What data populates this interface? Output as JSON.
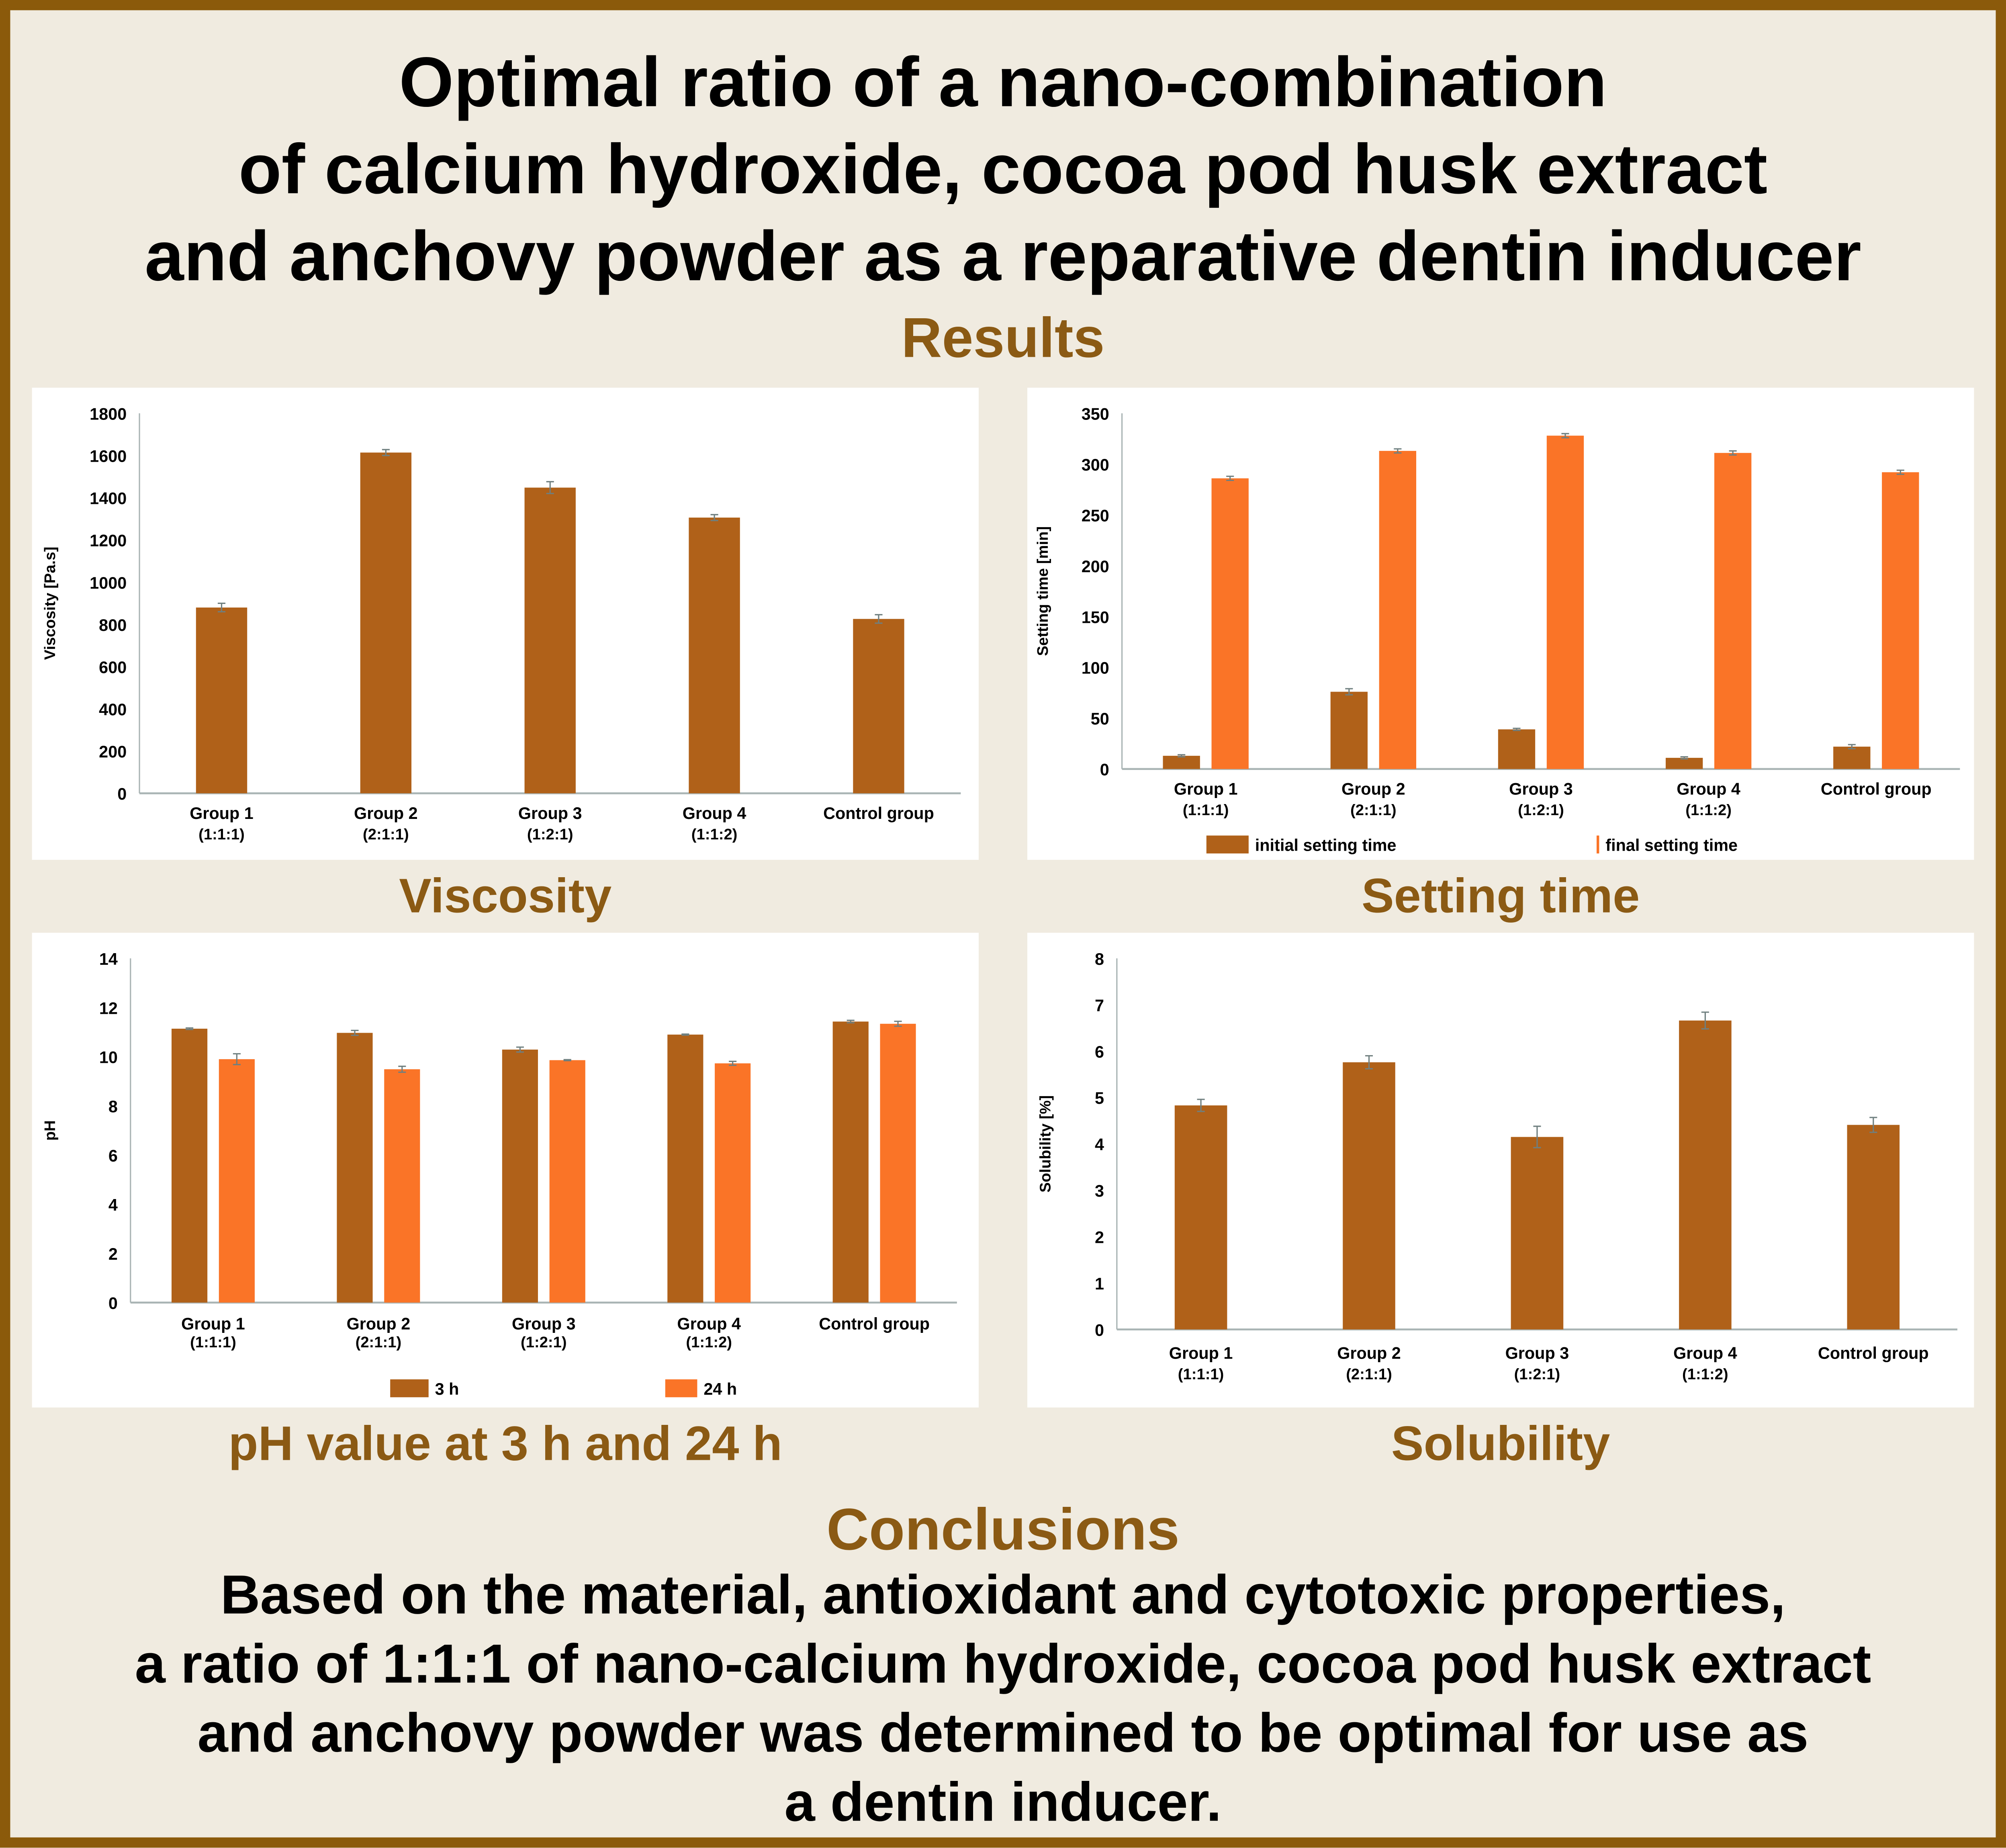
{
  "title": {
    "lines": [
      "Optimal ratio of a nano-combination",
      "of calcium hydroxide, cocoa pod husk extract",
      "and anchovy powder as a reparative dentin inducer"
    ]
  },
  "results_heading": "Results",
  "captions": [
    "Viscosity",
    "Setting time",
    "pH value at 3 h and 24 h",
    "Solubility"
  ],
  "conclusions": {
    "heading": "Conclusions",
    "lines": [
      "Based on the material, antioxidant and cytotoxic properties,",
      "a ratio of 1:1:1 of nano-calcium hydroxide, cocoa pod husk extract",
      "and anchovy powder was determined to be optimal for use as",
      "a dentin inducer."
    ]
  },
  "colors": {
    "dark_bar": "#B06119",
    "light_bar": "#FA7427",
    "accent": "#8B5A14",
    "border": "#8B5A0B",
    "background": "#F0EBE0"
  },
  "chart_data": [
    {
      "type": "bar",
      "title": "",
      "ylabel": "Viscosity [Pa.s]",
      "xlabel": "",
      "ylim": [
        0,
        1800
      ],
      "yticks": [
        0,
        200,
        400,
        600,
        800,
        1000,
        1200,
        1400,
        1600,
        1800
      ],
      "grid": false,
      "categories": [
        [
          "Group 1",
          "(1:1:1)"
        ],
        [
          "Group 2",
          "(2:1:1)"
        ],
        [
          "Group 3",
          "(1:2:1)"
        ],
        [
          "Group 4",
          "(1:1:2)"
        ],
        [
          "Control group",
          ""
        ]
      ],
      "series": [
        {
          "values": [
            880,
            1614,
            1448,
            1306,
            826
          ],
          "errors": [
            20,
            14,
            28,
            14,
            20
          ],
          "color": "#B06119"
        }
      ],
      "legend": "none"
    },
    {
      "type": "bar",
      "title": "",
      "ylabel": "Setting time [min]",
      "xlabel": "",
      "ylim": [
        0,
        350
      ],
      "yticks": [
        0,
        50,
        100,
        150,
        200,
        250,
        300,
        350
      ],
      "grid": false,
      "categories": [
        [
          "Group 1",
          "(1:1:1)"
        ],
        [
          "Group 2",
          "(2:1:1)"
        ],
        [
          "Group 3",
          "(1:2:1)"
        ],
        [
          "Group 4",
          "(1:1:2)"
        ],
        [
          "Control group",
          ""
        ]
      ],
      "series": [
        {
          "name": "initial setting time",
          "values": [
            13,
            76,
            39,
            11,
            22
          ],
          "errors": [
            1,
            3,
            1,
            1,
            2
          ],
          "color": "#B06119"
        },
        {
          "name": "final setting time",
          "values": [
            286,
            313,
            328,
            311,
            292
          ],
          "errors": [
            2,
            2,
            2,
            2,
            2
          ],
          "color": "#FA7427"
        }
      ],
      "legend": "bottom"
    },
    {
      "type": "bar",
      "title": "",
      "ylabel": "pH",
      "xlabel": "",
      "ylim": [
        0,
        14
      ],
      "yticks": [
        0,
        2,
        4,
        6,
        8,
        10,
        12,
        14
      ],
      "grid": false,
      "categories": [
        [
          "Group 1",
          "(1:1:1)"
        ],
        [
          "Group 2",
          "(2:1:1)"
        ],
        [
          "Group 3",
          "(1:2:1)"
        ],
        [
          "Group 4",
          "(1:1:2)"
        ],
        [
          "Control group",
          ""
        ]
      ],
      "series": [
        {
          "name": "3 h",
          "values": [
            11.14,
            10.97,
            10.29,
            10.9,
            11.43
          ],
          "errors": [
            0.03,
            0.1,
            0.1,
            0.02,
            0.05
          ],
          "color": "#B06119"
        },
        {
          "name": "24 h",
          "values": [
            9.9,
            9.49,
            9.86,
            9.73,
            11.34
          ],
          "errors": [
            0.22,
            0.12,
            0.02,
            0.08,
            0.1
          ],
          "color": "#FA7427"
        }
      ],
      "legend": "bottom"
    },
    {
      "type": "bar",
      "title": "",
      "ylabel": "Solubility [%]",
      "xlabel": "",
      "ylim": [
        0,
        8
      ],
      "yticks": [
        0,
        1,
        2,
        3,
        4,
        5,
        6,
        7,
        8
      ],
      "grid": false,
      "categories": [
        [
          "Group 1",
          "(1:1:1)"
        ],
        [
          "Group 2",
          "(2:1:1)"
        ],
        [
          "Group 3",
          "(1:2:1)"
        ],
        [
          "Group 4",
          "(1:1:2)"
        ],
        [
          "Control group",
          ""
        ]
      ],
      "series": [
        {
          "values": [
            4.83,
            5.76,
            4.15,
            6.66,
            4.41
          ],
          "errors": [
            0.13,
            0.14,
            0.23,
            0.18,
            0.16
          ],
          "color": "#B06119"
        }
      ],
      "legend": "none"
    }
  ]
}
